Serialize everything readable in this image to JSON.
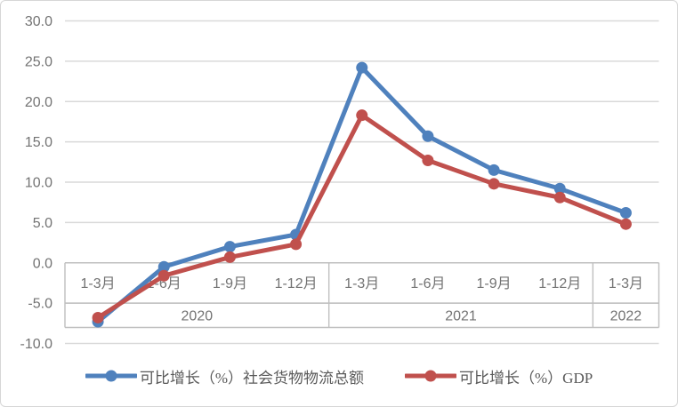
{
  "colors": {
    "background": "#ffffff",
    "frame_border": "#d6d6d6",
    "gridline": "#d9d9d9",
    "band_border": "#bfbfbf",
    "tick_text": "#737373",
    "legend_text": "#595959",
    "series_blue": "#4F81BD",
    "series_red": "#C0504D"
  },
  "chart_data": {
    "type": "line",
    "title": "",
    "xlabel": "",
    "ylabel": "",
    "grid": true,
    "legend_position": "bottom",
    "ylim": [
      -10,
      30
    ],
    "ytick_step": 5,
    "ytick_labels": [
      "30.0",
      "25.0",
      "20.0",
      "15.0",
      "10.0",
      "5.0",
      "0.0",
      "-5.0",
      "-10.0"
    ],
    "categories": [
      "1-3月",
      "1-6月",
      "1-9月",
      "1-12月",
      "1-3月",
      "1-6月",
      "1-9月",
      "1-12月",
      "1-3月"
    ],
    "year_groups": [
      {
        "label": "2020",
        "span": 4
      },
      {
        "label": "2021",
        "span": 4
      },
      {
        "label": "2022",
        "span": 1
      }
    ],
    "series": [
      {
        "name": "可比增长（%）社会货物物流总额",
        "color": "#4F81BD",
        "marker": "circle",
        "values": [
          -7.3,
          -0.5,
          2.0,
          3.5,
          24.2,
          15.7,
          11.5,
          9.2,
          6.2
        ]
      },
      {
        "name": "可比增长（%）GDP",
        "color": "#C0504D",
        "marker": "circle",
        "values": [
          -6.8,
          -1.6,
          0.7,
          2.3,
          18.3,
          12.7,
          9.8,
          8.1,
          4.8
        ]
      }
    ]
  }
}
